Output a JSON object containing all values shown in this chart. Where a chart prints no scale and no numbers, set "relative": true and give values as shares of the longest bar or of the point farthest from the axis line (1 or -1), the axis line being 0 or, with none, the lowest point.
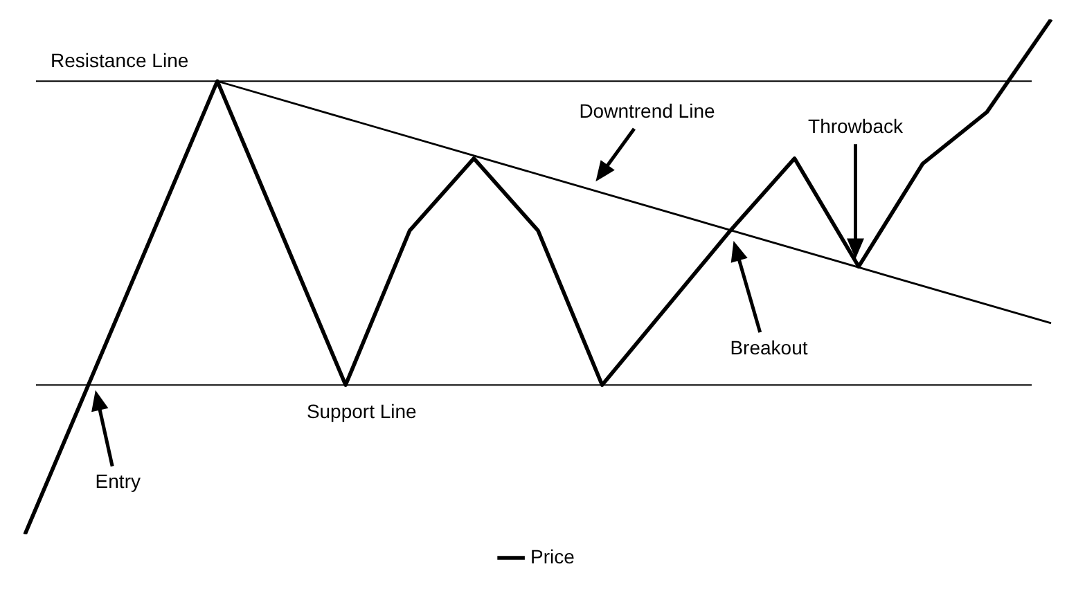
{
  "chart_data": {
    "type": "line",
    "relative": true,
    "categories": [
      null,
      null,
      null,
      null,
      null,
      null,
      null,
      null,
      null,
      null,
      null,
      null,
      null,
      null,
      null,
      null,
      null,
      null,
      null,
      null,
      null,
      null,
      null,
      null,
      null,
      null,
      null,
      null,
      null,
      null,
      null,
      null,
      null
    ],
    "series": [
      {
        "name": "Price",
        "color": "#000000",
        "values": [
          0,
          null,
          null,
          null,
          null,
          null,
          0.88,
          null,
          null,
          null,
          0.29,
          null,
          0.59,
          null,
          0.73,
          null,
          0.59,
          null,
          0.29,
          null,
          null,
          null,
          0.59,
          null,
          0.73,
          null,
          0.52,
          null,
          0.72,
          null,
          0.82,
          null,
          1
        ]
      },
      {
        "type": "line",
        "color": "#000000",
        "values": [
          null,
          null,
          null,
          null,
          null,
          null,
          0.88,
          null,
          null,
          null,
          null,
          null,
          null,
          null,
          null,
          null,
          null,
          null,
          null,
          null,
          null,
          null,
          null,
          null,
          null,
          null,
          null,
          null,
          null,
          null,
          null,
          null,
          0.41
        ]
      }
    ],
    "ref_lines": [
      {
        "axis": "y",
        "value": 0.88,
        "label": "Resistance Line",
        "color": "#000000"
      },
      {
        "axis": "y",
        "value": 0.29,
        "label": "Support Line",
        "color": "#000000"
      }
    ],
    "annotations": [
      "Downtrend Line",
      "Entry",
      "Breakout",
      "Throwback"
    ],
    "legend": "bottom",
    "marker": "none",
    "line_style": "solid"
  }
}
